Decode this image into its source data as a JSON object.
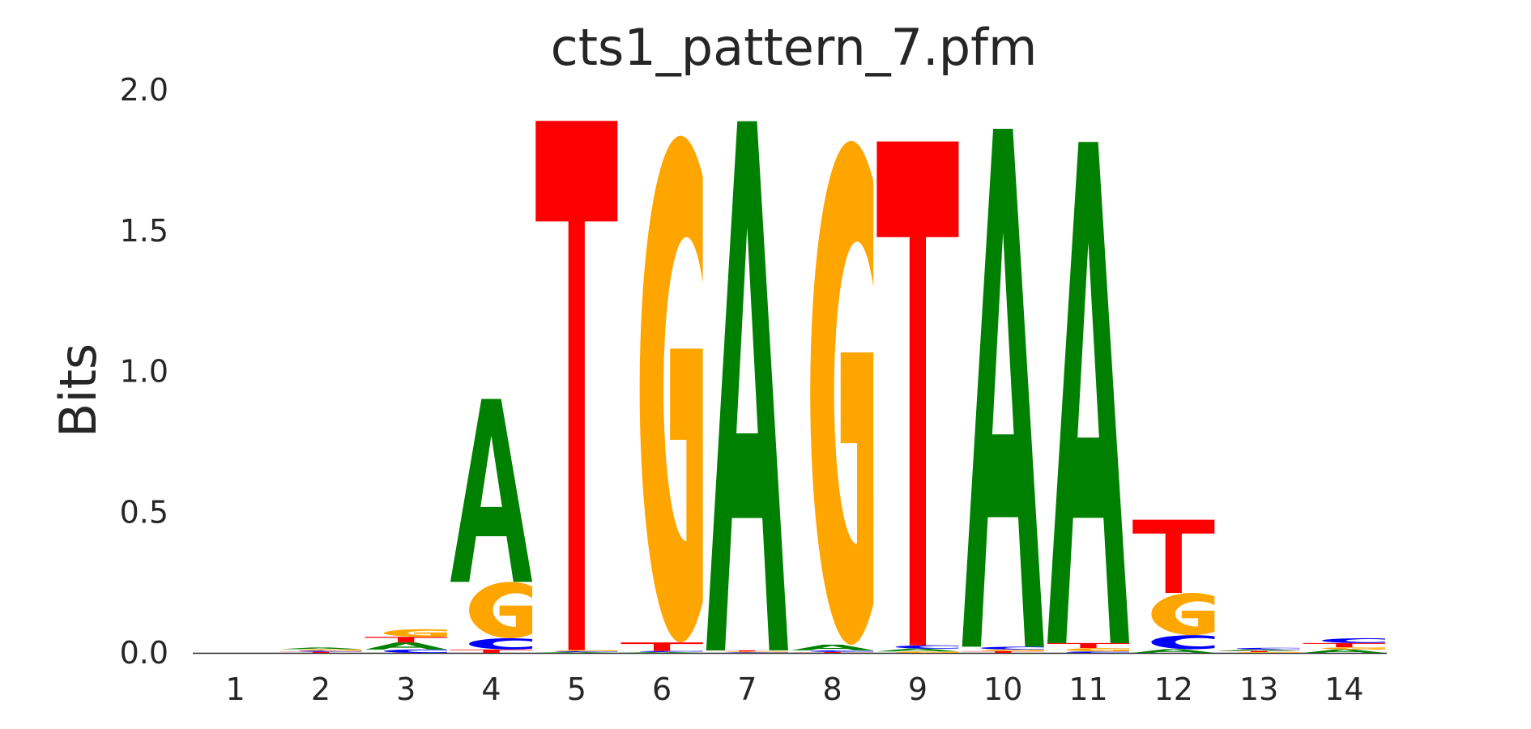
{
  "chart_data": {
    "type": "sequence-logo",
    "title": "cts1_pattern_7.pfm",
    "ylabel": "Bits",
    "xlabel": "",
    "ylim": [
      0,
      2.0
    ],
    "yticks": [
      "0.0",
      "0.5",
      "1.0",
      "1.5",
      "2.0"
    ],
    "grid": false,
    "colors": {
      "A": "#008000",
      "C": "#0000FF",
      "G": "#FFA500",
      "T": "#FF0000"
    },
    "positions": [
      {
        "label": "1",
        "letters": []
      },
      {
        "label": "2",
        "letters": [
          [
            "T",
            0.004
          ],
          [
            "C",
            0.004
          ],
          [
            "G",
            0.005
          ],
          [
            "A",
            0.006
          ]
        ]
      },
      {
        "label": "3",
        "letters": [
          [
            "C",
            0.012
          ],
          [
            "A",
            0.025
          ],
          [
            "T",
            0.02
          ],
          [
            "G",
            0.027
          ]
        ]
      },
      {
        "label": "4",
        "letters": [
          [
            "T",
            0.012
          ],
          [
            "C",
            0.04
          ],
          [
            "G",
            0.2
          ],
          [
            "A",
            0.65
          ]
        ]
      },
      {
        "label": "5",
        "letters": [
          [
            "A",
            0.003
          ],
          [
            "C",
            0.003
          ],
          [
            "G",
            0.004
          ],
          [
            "T",
            1.88
          ]
        ]
      },
      {
        "label": "6",
        "letters": [
          [
            "A",
            0.003
          ],
          [
            "C",
            0.004
          ],
          [
            "T",
            0.03
          ],
          [
            "G",
            1.8
          ]
        ]
      },
      {
        "label": "7",
        "letters": [
          [
            "C",
            0.002
          ],
          [
            "G",
            0.003
          ],
          [
            "T",
            0.004
          ],
          [
            "A",
            1.88
          ]
        ]
      },
      {
        "label": "8",
        "letters": [
          [
            "T",
            0.003
          ],
          [
            "C",
            0.006
          ],
          [
            "A",
            0.02
          ],
          [
            "G",
            1.79
          ]
        ]
      },
      {
        "label": "9",
        "letters": [
          [
            "G",
            0.005
          ],
          [
            "A",
            0.01
          ],
          [
            "C",
            0.012
          ],
          [
            "T",
            1.79
          ]
        ]
      },
      {
        "label": "10",
        "letters": [
          [
            "T",
            0.006
          ],
          [
            "G",
            0.006
          ],
          [
            "C",
            0.01
          ],
          [
            "A",
            1.84
          ]
        ]
      },
      {
        "label": "11",
        "letters": [
          [
            "C",
            0.005
          ],
          [
            "G",
            0.012
          ],
          [
            "T",
            0.018
          ],
          [
            "A",
            1.78
          ]
        ]
      },
      {
        "label": "12",
        "letters": [
          [
            "A",
            0.013
          ],
          [
            "C",
            0.05
          ],
          [
            "G",
            0.15
          ],
          [
            "T",
            0.26
          ]
        ]
      },
      {
        "label": "13",
        "letters": [
          [
            "G",
            0.003
          ],
          [
            "T",
            0.004
          ],
          [
            "A",
            0.005
          ],
          [
            "C",
            0.006
          ]
        ]
      },
      {
        "label": "14",
        "letters": [
          [
            "A",
            0.012
          ],
          [
            "G",
            0.008
          ],
          [
            "T",
            0.015
          ],
          [
            "C",
            0.017
          ]
        ]
      }
    ]
  }
}
